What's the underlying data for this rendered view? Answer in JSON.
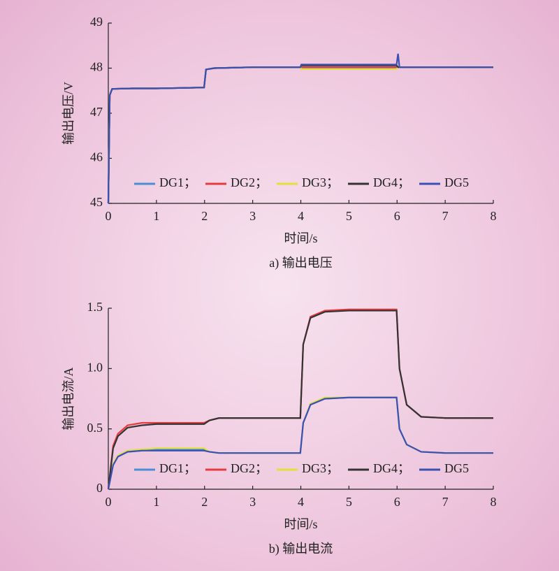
{
  "chart_data": [
    {
      "type": "line",
      "caption": "a) 输出电压",
      "xlabel": "时间/s",
      "ylabel": "输出电压/V",
      "x": [
        0,
        0.03,
        0.08,
        0.5,
        1,
        1.5,
        1.99,
        2.03,
        2.2,
        3,
        3.99,
        4.01,
        5,
        5.99,
        6.02,
        6.05,
        7,
        8
      ],
      "xlim": [
        0,
        8
      ],
      "xticks": [
        0,
        1,
        2,
        3,
        4,
        5,
        6,
        7,
        8
      ],
      "ylim": [
        45,
        49
      ],
      "yticks": [
        45,
        46,
        47,
        48,
        49
      ],
      "legend": "lower center",
      "series": [
        {
          "name": "DG1；",
          "color": "#4a8fd4",
          "values": [
            45,
            47.4,
            47.54,
            47.55,
            47.55,
            47.56,
            47.57,
            47.97,
            48.0,
            48.02,
            48.02,
            48.01,
            48.01,
            48.01,
            48.02,
            48.02,
            48.02,
            48.02
          ]
        },
        {
          "name": "DG2；",
          "color": "#e63a3f",
          "values": [
            45,
            47.4,
            47.54,
            47.55,
            47.55,
            47.56,
            47.57,
            47.97,
            48.0,
            48.02,
            48.02,
            48.02,
            48.02,
            48.02,
            48.02,
            48.02,
            48.02,
            48.02
          ]
        },
        {
          "name": "DG3；",
          "color": "#e3e03c",
          "values": [
            45,
            47.4,
            47.54,
            47.55,
            47.55,
            47.56,
            47.57,
            47.97,
            48.0,
            48.02,
            48.02,
            47.98,
            47.98,
            47.98,
            48.02,
            48.02,
            48.02,
            48.02
          ]
        },
        {
          "name": "DG4；",
          "color": "#333333",
          "values": [
            45,
            47.4,
            47.54,
            47.55,
            47.55,
            47.56,
            47.57,
            47.97,
            48.0,
            48.02,
            48.02,
            48.06,
            48.06,
            48.06,
            48.02,
            48.02,
            48.02,
            48.02
          ]
        },
        {
          "name": "DG5",
          "color": "#3a50b2",
          "values": [
            45,
            47.4,
            47.54,
            47.55,
            47.55,
            47.56,
            47.57,
            47.97,
            48.0,
            48.02,
            48.02,
            48.08,
            48.08,
            48.08,
            48.32,
            48.02,
            48.02,
            48.02
          ]
        }
      ]
    },
    {
      "type": "line",
      "caption": "b) 输出电流",
      "xlabel": "时间/s",
      "ylabel": "输出电流/A",
      "x": [
        0,
        0.1,
        0.2,
        0.4,
        0.7,
        1,
        1.5,
        1.99,
        2.1,
        2.3,
        3,
        3.99,
        4.05,
        4.2,
        4.5,
        5,
        5.99,
        6.05,
        6.2,
        6.5,
        7,
        8
      ],
      "xlim": [
        0,
        8
      ],
      "xticks": [
        0,
        1,
        2,
        3,
        4,
        5,
        6,
        7,
        8
      ],
      "ylim": [
        0,
        1.5
      ],
      "yticks": [
        0,
        0.5,
        {
          "value": 1,
          "label": "1.0"
        },
        1.5
      ],
      "legend": "lower center",
      "series": [
        {
          "name": "DG1；",
          "color": "#4a8fd4",
          "values": [
            0,
            0.2,
            0.27,
            0.31,
            0.32,
            0.33,
            0.33,
            0.33,
            0.31,
            0.3,
            0.3,
            0.3,
            0.55,
            0.7,
            0.75,
            0.76,
            0.76,
            0.5,
            0.37,
            0.31,
            0.3,
            0.3
          ]
        },
        {
          "name": "DG2；",
          "color": "#e63a3f",
          "values": [
            0,
            0.36,
            0.46,
            0.53,
            0.55,
            0.55,
            0.55,
            0.55,
            0.57,
            0.59,
            0.59,
            0.59,
            1.2,
            1.43,
            1.48,
            1.49,
            1.49,
            1.0,
            0.7,
            0.6,
            0.59,
            0.59
          ]
        },
        {
          "name": "DG3；",
          "color": "#e3e03c",
          "values": [
            0,
            0.21,
            0.28,
            0.32,
            0.33,
            0.34,
            0.34,
            0.34,
            0.31,
            0.3,
            0.3,
            0.3,
            0.55,
            0.71,
            0.76,
            0.76,
            0.76,
            0.5,
            0.37,
            0.31,
            0.3,
            0.3
          ]
        },
        {
          "name": "DG4；",
          "color": "#333333",
          "values": [
            0,
            0.34,
            0.44,
            0.51,
            0.53,
            0.54,
            0.54,
            0.54,
            0.57,
            0.59,
            0.59,
            0.59,
            1.2,
            1.42,
            1.47,
            1.48,
            1.48,
            1.0,
            0.7,
            0.6,
            0.59,
            0.59
          ]
        },
        {
          "name": "DG5",
          "color": "#3a50b2",
          "values": [
            0,
            0.2,
            0.27,
            0.31,
            0.32,
            0.32,
            0.32,
            0.32,
            0.31,
            0.3,
            0.3,
            0.3,
            0.55,
            0.7,
            0.75,
            0.76,
            0.76,
            0.5,
            0.37,
            0.31,
            0.3,
            0.3
          ]
        }
      ]
    }
  ]
}
